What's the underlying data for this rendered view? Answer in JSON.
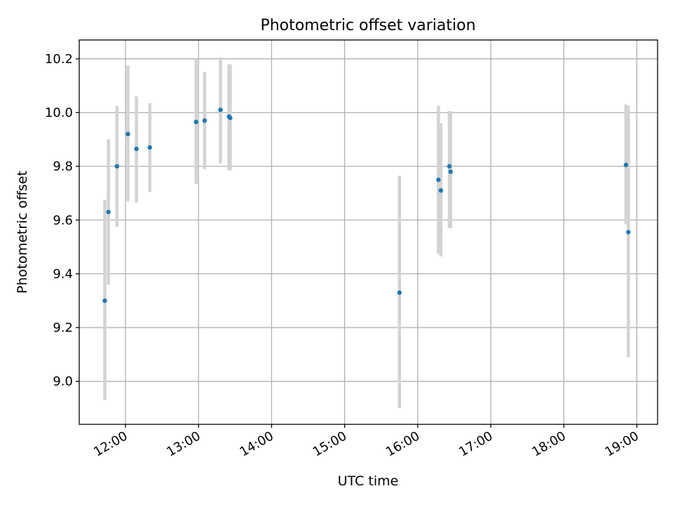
{
  "chart_data": {
    "type": "scatter",
    "title": "Photometric offset variation",
    "xlabel": "UTC time",
    "ylabel": "Photometric offset",
    "xlim": [
      "11:22",
      "19:17"
    ],
    "ylim": [
      8.84,
      10.27
    ],
    "grid": true,
    "x_ticks": [
      "12:00",
      "13:00",
      "14:00",
      "15:00",
      "16:00",
      "17:00",
      "18:00",
      "19:00"
    ],
    "y_ticks": [
      "9.0",
      "9.2",
      "9.4",
      "9.6",
      "9.8",
      "10.0",
      "10.2"
    ],
    "colors": {
      "points": "#1f77b4",
      "error_bars": "#d3d3d3",
      "grid": "#b0b0b0"
    },
    "series": [
      {
        "points": [
          {
            "time": "11:43",
            "y": 9.3,
            "err_low": 8.93,
            "err_high": 9.675
          },
          {
            "time": "11:46",
            "y": 9.63,
            "err_low": 9.36,
            "err_high": 9.9
          },
          {
            "time": "11:53",
            "y": 9.8,
            "err_low": 9.575,
            "err_high": 10.025
          },
          {
            "time": "12:02",
            "y": 9.92,
            "err_low": 9.67,
            "err_high": 10.175
          },
          {
            "time": "12:09",
            "y": 9.865,
            "err_low": 9.665,
            "err_high": 10.06
          },
          {
            "time": "12:20",
            "y": 9.87,
            "err_low": 9.705,
            "err_high": 10.035
          },
          {
            "time": "12:58",
            "y": 9.965,
            "err_low": 9.735,
            "err_high": 10.2
          },
          {
            "time": "13:05",
            "y": 9.97,
            "err_low": 9.79,
            "err_high": 10.15
          },
          {
            "time": "13:18",
            "y": 10.01,
            "err_low": 9.81,
            "err_high": 10.205
          },
          {
            "time": "13:25",
            "y": 9.985,
            "err_low": 9.785,
            "err_high": 10.18
          },
          {
            "time": "13:26",
            "y": 9.98,
            "err_low": 9.785,
            "err_high": 10.18
          },
          {
            "time": "15:45",
            "y": 9.33,
            "err_low": 8.9,
            "err_high": 9.765
          },
          {
            "time": "16:17",
            "y": 9.75,
            "err_low": 9.475,
            "err_high": 10.025
          },
          {
            "time": "16:19",
            "y": 9.71,
            "err_low": 9.465,
            "err_high": 9.96
          },
          {
            "time": "16:26",
            "y": 9.8,
            "err_low": 9.57,
            "err_high": 10.005
          },
          {
            "time": "16:27",
            "y": 9.78,
            "err_low": 9.57,
            "err_high": 10.005
          },
          {
            "time": "18:51",
            "y": 9.805,
            "err_low": 9.585,
            "err_high": 10.03
          },
          {
            "time": "18:53",
            "y": 9.555,
            "err_low": 9.09,
            "err_high": 10.025
          }
        ]
      }
    ]
  }
}
